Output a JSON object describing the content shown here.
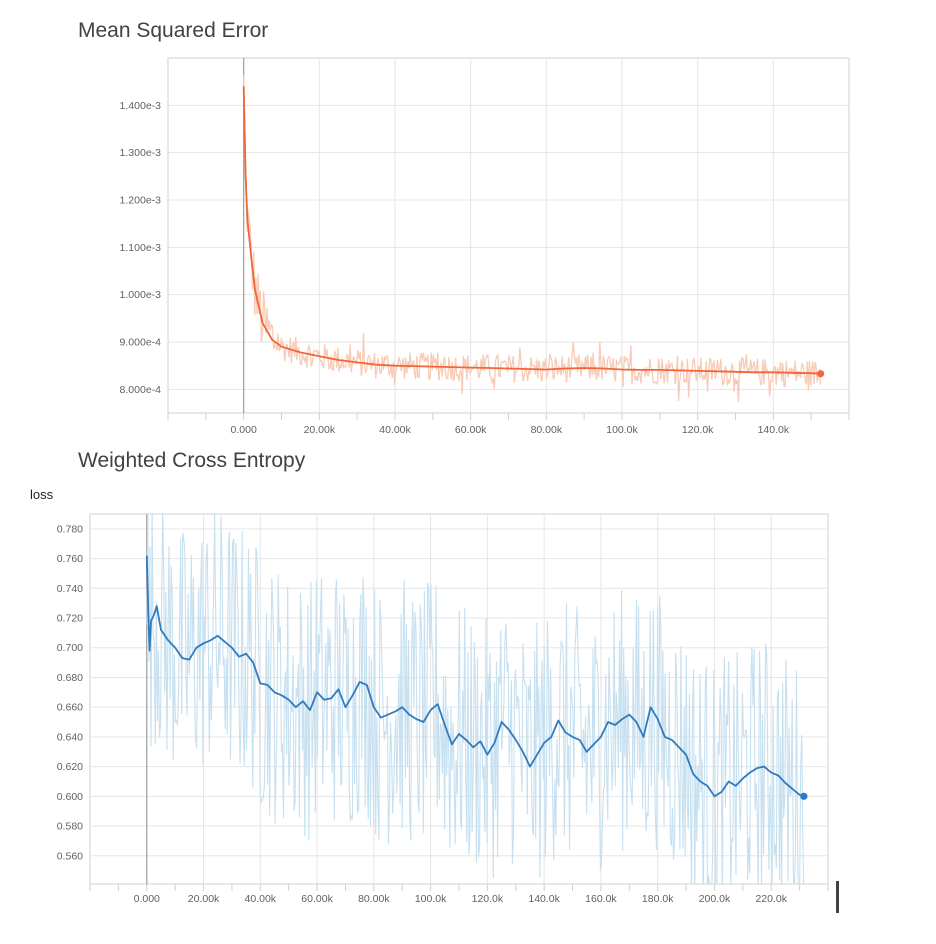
{
  "chart_data": [
    {
      "type": "line",
      "title": "Mean Squared Error",
      "xlabel": "",
      "ylabel": "",
      "x_ticks": [
        "0.000",
        "20.00k",
        "40.00k",
        "60.00k",
        "80.00k",
        "100.0k",
        "120.0k",
        "140.0k"
      ],
      "y_ticks": [
        "8.000e-4",
        "9.000e-4",
        "1.000e-3",
        "1.100e-3",
        "1.200e-3",
        "1.300e-3",
        "1.400e-3"
      ],
      "xlim": [
        -20000,
        160000
      ],
      "ylim": [
        0.00075,
        0.0015
      ],
      "grid": true,
      "series": [
        {
          "role": "smoothed",
          "color": "#f0663a",
          "x": [
            0,
            500,
            1000,
            2000,
            3000,
            5000,
            7500,
            10000,
            15000,
            20000,
            25000,
            30000,
            35000,
            40000,
            45000,
            50000,
            55000,
            60000,
            65000,
            70000,
            75000,
            80000,
            85000,
            90000,
            95000,
            100000,
            105000,
            110000,
            115000,
            120000,
            125000,
            130000,
            135000,
            140000,
            145000,
            150000,
            152500
          ],
          "values": [
            0.00144,
            0.00125,
            0.00116,
            0.00108,
            0.00101,
            0.00094,
            0.000905,
            0.00089,
            0.000878,
            0.00087,
            0.000862,
            0.000857,
            0.000852,
            0.00085,
            0.000849,
            0.000848,
            0.000847,
            0.000846,
            0.000845,
            0.000844,
            0.000843,
            0.000842,
            0.000844,
            0.000845,
            0.000844,
            0.000842,
            0.000841,
            0.000841,
            0.00084,
            0.000839,
            0.000838,
            0.000837,
            0.000836,
            0.000836,
            0.000835,
            0.000834,
            0.000833
          ]
        },
        {
          "role": "raw",
          "color": "#f7cbb6",
          "x_range": [
            0,
            152500
          ],
          "noise": 3e-05
        }
      ]
    },
    {
      "type": "line",
      "title": "Weighted Cross Entropy",
      "xlabel": "",
      "ylabel": "loss",
      "x_ticks": [
        "0.000",
        "20.00k",
        "40.00k",
        "60.00k",
        "80.00k",
        "100.0k",
        "120.0k",
        "140.0k",
        "160.0k",
        "180.0k",
        "200.0k",
        "220.0k"
      ],
      "y_ticks": [
        "0.560",
        "0.580",
        "0.600",
        "0.620",
        "0.640",
        "0.660",
        "0.680",
        "0.700",
        "0.720",
        "0.740",
        "0.760",
        "0.780"
      ],
      "xlim": [
        -20000,
        240000
      ],
      "ylim": [
        0.541,
        0.79
      ],
      "grid": true,
      "series": [
        {
          "role": "smoothed",
          "color": "#2f7bbf",
          "x": [
            0,
            500,
            1000,
            1500,
            2500,
            3500,
            5000,
            7500,
            10000,
            12500,
            15000,
            17500,
            20000,
            22500,
            25000,
            27500,
            30000,
            32500,
            35000,
            37500,
            40000,
            42500,
            45000,
            47500,
            50000,
            52500,
            55000,
            57500,
            60000,
            62500,
            65000,
            67500,
            70000,
            72500,
            75000,
            77500,
            80000,
            82500,
            85000,
            87500,
            90000,
            92500,
            95000,
            97500,
            100000,
            102500,
            105000,
            107500,
            110000,
            112500,
            115000,
            117500,
            120000,
            122500,
            125000,
            127500,
            130000,
            132500,
            135000,
            137500,
            140000,
            142500,
            145000,
            147500,
            150000,
            152500,
            155000,
            157500,
            160000,
            162500,
            165000,
            167500,
            170000,
            172500,
            175000,
            177500,
            180000,
            182500,
            185000,
            187500,
            190000,
            192500,
            195000,
            197500,
            200000,
            202500,
            205000,
            207500,
            210000,
            212500,
            215000,
            217500,
            220000,
            222500,
            225000,
            227500,
            230000,
            231500
          ],
          "values": [
            0.762,
            0.725,
            0.698,
            0.718,
            0.722,
            0.728,
            0.712,
            0.705,
            0.7,
            0.693,
            0.692,
            0.7,
            0.703,
            0.705,
            0.708,
            0.704,
            0.7,
            0.694,
            0.696,
            0.69,
            0.676,
            0.675,
            0.67,
            0.668,
            0.665,
            0.66,
            0.664,
            0.658,
            0.67,
            0.665,
            0.666,
            0.672,
            0.66,
            0.668,
            0.677,
            0.675,
            0.66,
            0.653,
            0.655,
            0.657,
            0.66,
            0.655,
            0.652,
            0.65,
            0.658,
            0.662,
            0.648,
            0.635,
            0.642,
            0.638,
            0.633,
            0.637,
            0.628,
            0.636,
            0.65,
            0.645,
            0.638,
            0.63,
            0.62,
            0.628,
            0.636,
            0.64,
            0.651,
            0.643,
            0.64,
            0.638,
            0.63,
            0.635,
            0.64,
            0.65,
            0.648,
            0.652,
            0.655,
            0.65,
            0.64,
            0.66,
            0.652,
            0.64,
            0.638,
            0.633,
            0.628,
            0.615,
            0.61,
            0.607,
            0.6,
            0.603,
            0.61,
            0.607,
            0.612,
            0.616,
            0.619,
            0.62,
            0.616,
            0.614,
            0.609,
            0.605,
            0.601,
            0.6
          ]
        },
        {
          "role": "raw",
          "color": "#c7e0f0",
          "x_range": [
            0,
            231500
          ],
          "noise": 0.09
        }
      ]
    }
  ]
}
